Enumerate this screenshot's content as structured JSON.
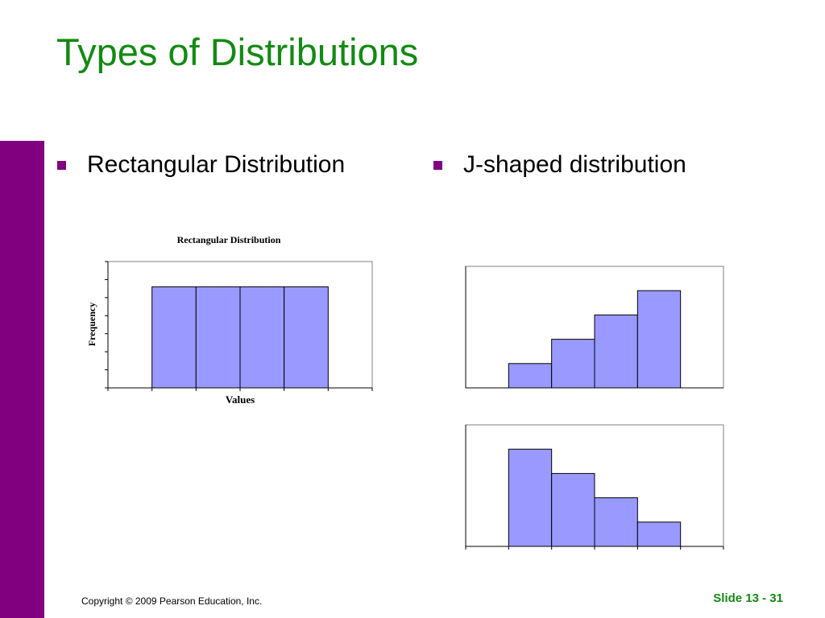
{
  "slide": {
    "title": "Types of Distributions",
    "bullets": [
      "Rectangular Distribution",
      "J-shaped distribution"
    ],
    "copyright": "Copyright © 2009 Pearson Education, Inc.",
    "slide_number": "Slide 13 - 31"
  },
  "colors": {
    "title": "#138a13",
    "accent_bar": "#800080",
    "bullet_square": "#800080",
    "bar_fill": "#9999ff",
    "slide_number": "#138a13"
  },
  "chart_data": [
    {
      "type": "bar",
      "title": "Rectangular Distribution",
      "xlabel": "Values",
      "ylabel": "Frequency",
      "values": [
        0,
        4,
        4,
        4,
        4,
        0
      ],
      "ylim": [
        0,
        5
      ],
      "grid": false,
      "legend": "none"
    },
    {
      "type": "bar",
      "title": "",
      "xlabel": "",
      "ylabel": "",
      "values": [
        0,
        1,
        2,
        3,
        4,
        0
      ],
      "ylim": [
        0,
        5
      ],
      "grid": false,
      "legend": "none"
    },
    {
      "type": "bar",
      "title": "",
      "xlabel": "",
      "ylabel": "",
      "values": [
        0,
        4,
        3,
        2,
        1,
        0
      ],
      "ylim": [
        0,
        5
      ],
      "grid": false,
      "legend": "none"
    }
  ]
}
